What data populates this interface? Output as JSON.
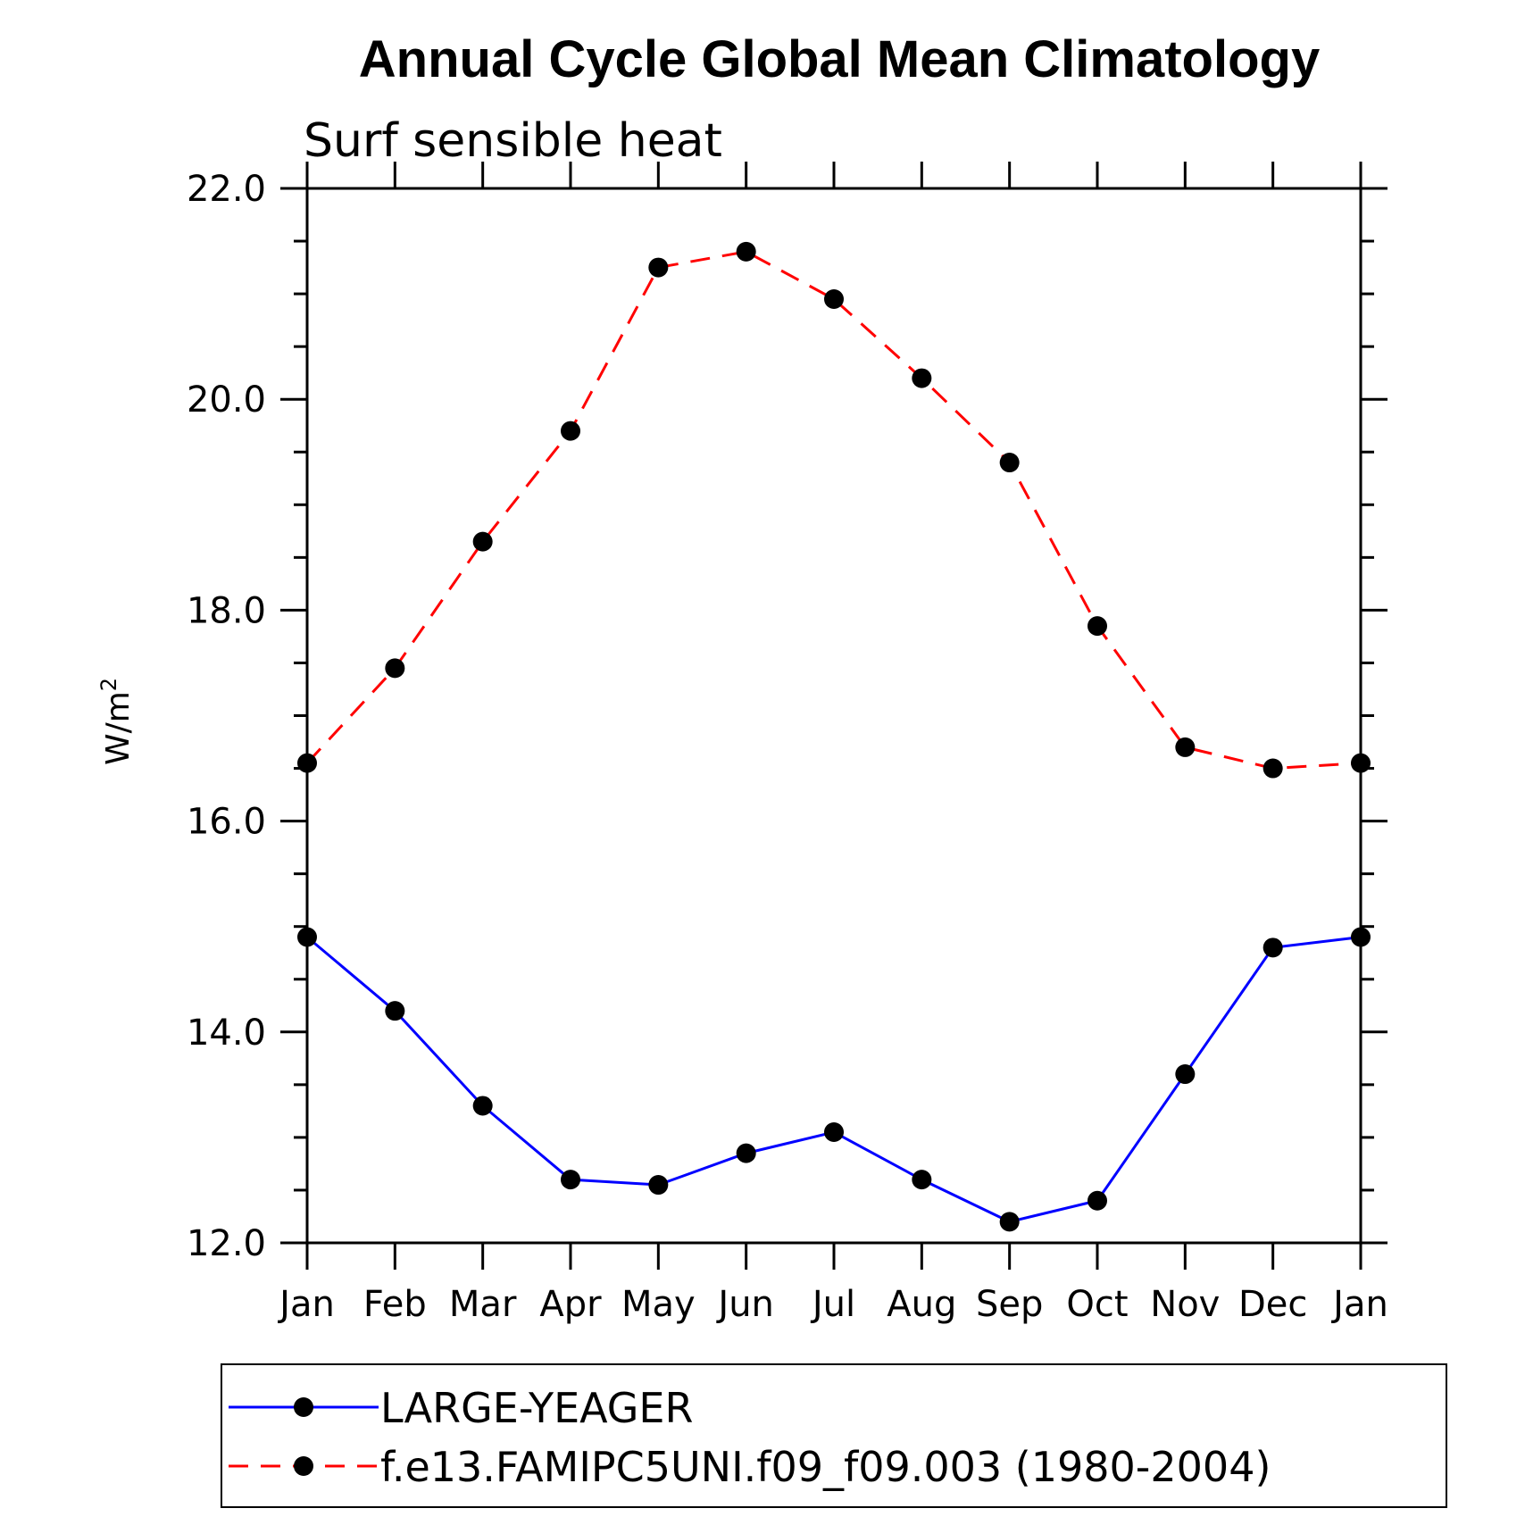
{
  "chart_data": {
    "type": "line",
    "title": "Annual Cycle Global Mean Climatology",
    "subtitle": "Surf sensible heat",
    "ylabel_base": "W/m",
    "ylabel_sup": "2",
    "categories": [
      "Jan",
      "Feb",
      "Mar",
      "Apr",
      "May",
      "Jun",
      "Jul",
      "Aug",
      "Sep",
      "Oct",
      "Nov",
      "Dec",
      "Jan"
    ],
    "ylim": [
      12.0,
      22.0
    ],
    "yticks": [
      "12.0",
      "14.0",
      "16.0",
      "18.0",
      "20.0",
      "22.0"
    ],
    "series": [
      {
        "name": "LARGE-YEAGER",
        "color": "#0000ff",
        "dash": "solid",
        "values": [
          14.9,
          14.2,
          13.3,
          12.6,
          12.55,
          12.85,
          13.05,
          12.6,
          12.2,
          12.4,
          13.6,
          14.8,
          14.9
        ]
      },
      {
        "name": "f.e13.FAMIPC5UNI.f09_f09.003 (1980-2004)",
        "color": "#ff0000",
        "dash": "dashed",
        "values": [
          16.55,
          17.45,
          18.65,
          19.7,
          21.25,
          21.4,
          20.95,
          20.2,
          19.4,
          17.85,
          16.7,
          16.5,
          16.55
        ]
      }
    ],
    "legend_position": "bottom"
  }
}
